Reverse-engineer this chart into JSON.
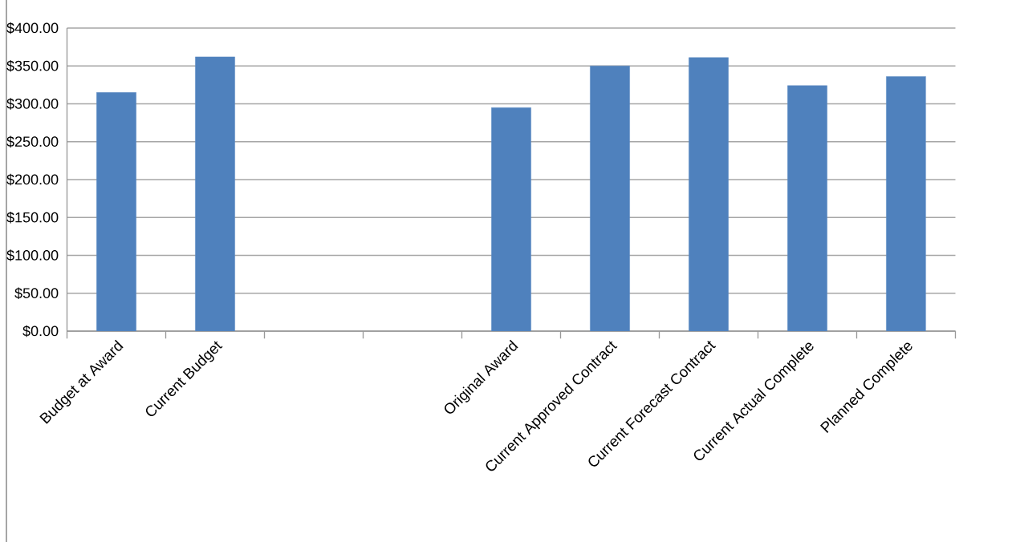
{
  "chart_data": {
    "type": "bar",
    "categories": [
      "Budget at Award",
      "Current Budget",
      null,
      null,
      "Original Award",
      "Current Approved Contract",
      "Current Forecast Contract",
      "Current Actual Complete",
      "Planned Complete"
    ],
    "values": [
      315,
      362,
      null,
      null,
      295,
      350,
      361,
      324,
      336
    ],
    "color": "#4f81bd",
    "ylim": [
      0,
      400
    ],
    "yticks": [
      {
        "value": 0,
        "label": "$0.00"
      },
      {
        "value": 50,
        "label": "$50.00"
      },
      {
        "value": 100,
        "label": "$100.00"
      },
      {
        "value": 150,
        "label": "$150.00"
      },
      {
        "value": 200,
        "label": "$200.00"
      },
      {
        "value": 250,
        "label": "$250.00"
      },
      {
        "value": 300,
        "label": "$300.00"
      },
      {
        "value": 350,
        "label": "$350.00"
      },
      {
        "value": 400,
        "label": "$400.00"
      }
    ],
    "grid": "y"
  }
}
